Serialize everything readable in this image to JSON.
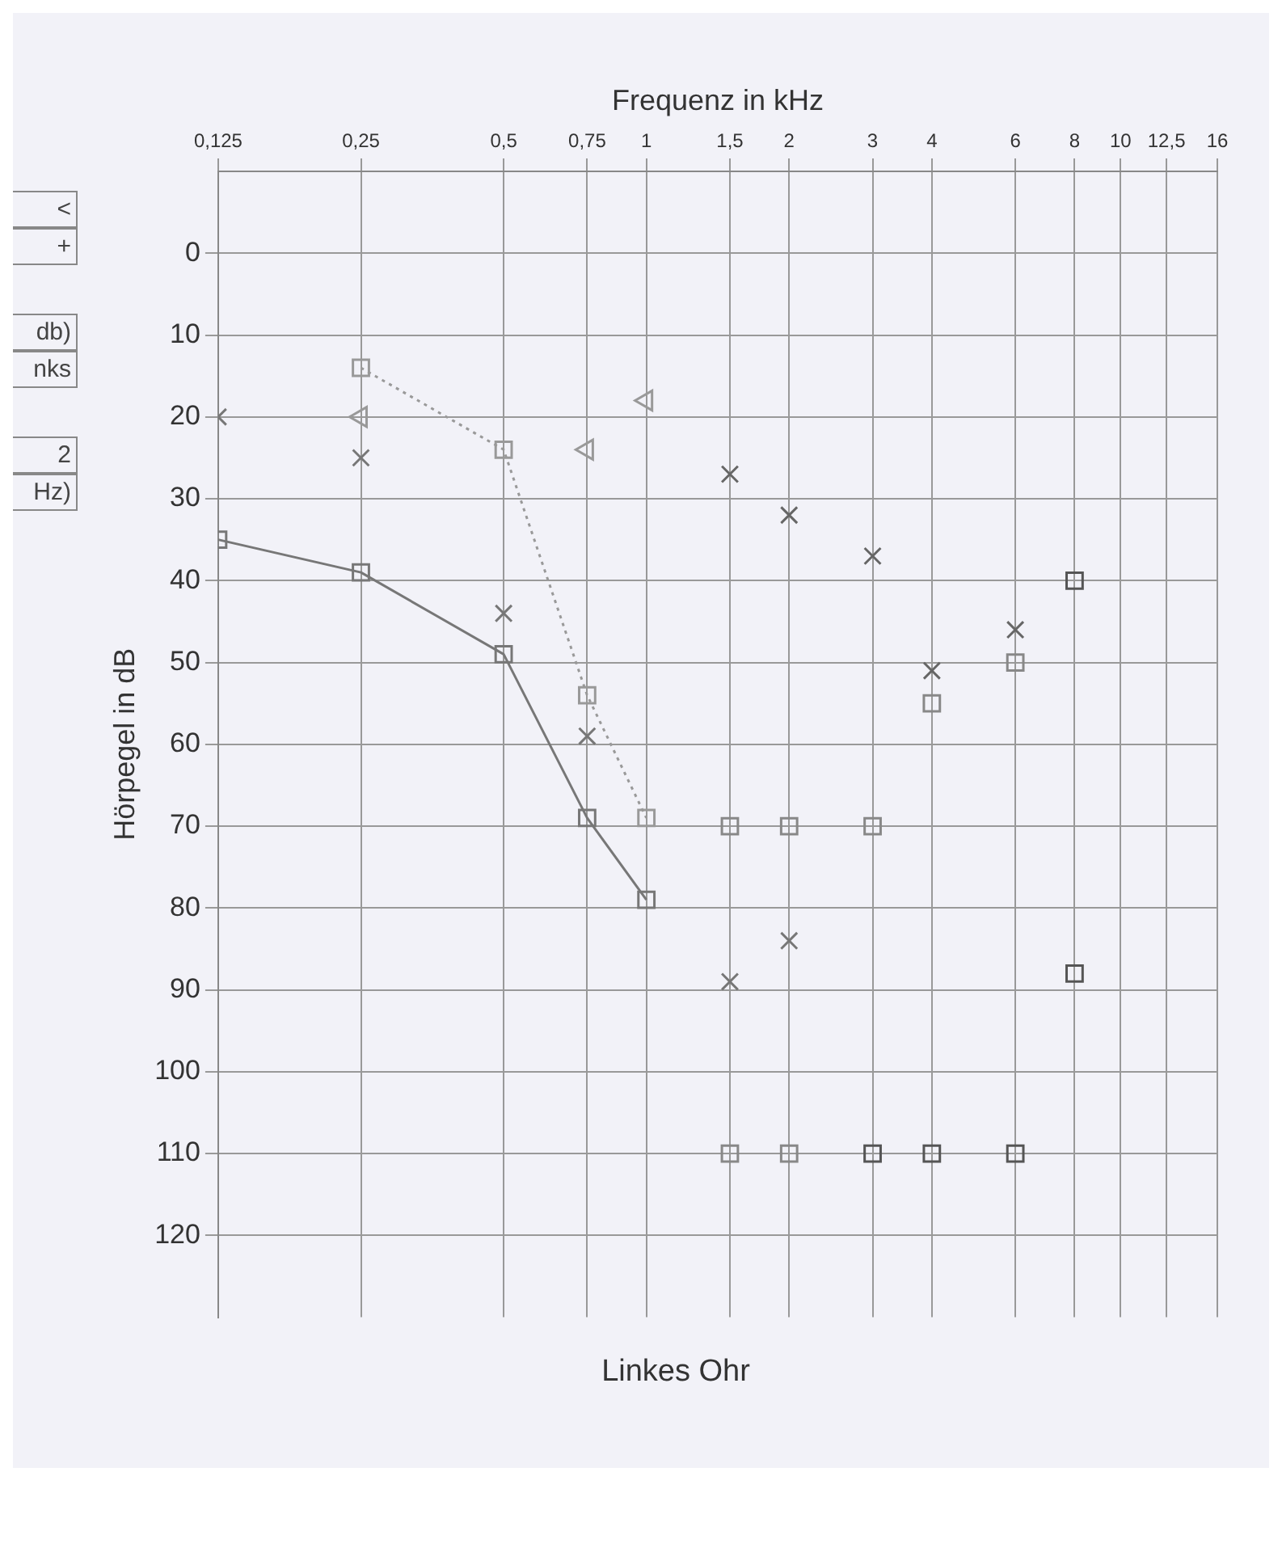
{
  "chart_data": {
    "type": "scatter",
    "xlabel": "Frequenz in kHz",
    "ylabel": "Hörpegel in dB",
    "annotations": [
      "Linkes Ohr",
      "<",
      "+",
      "db)",
      "nks",
      "2",
      "Hz)"
    ],
    "log": "x",
    "grid": true,
    "xlim": [
      0.125,
      16
    ],
    "ylim": [
      130,
      -10
    ],
    "xticks": [
      {
        "value": 0.125,
        "label": "0,125"
      },
      {
        "value": 0.25,
        "label": "0,25"
      },
      {
        "value": 0.5,
        "label": "0,5"
      },
      {
        "value": 0.75,
        "label": "0,75"
      },
      1,
      {
        "value": 1.5,
        "label": "1,5"
      },
      2,
      3,
      4,
      6,
      8,
      10,
      {
        "value": 12.5,
        "label": "12,5"
      },
      16
    ],
    "yticks": [
      0,
      10,
      20,
      30,
      40,
      50,
      60,
      70,
      80,
      90,
      100,
      110,
      120
    ],
    "series": [
      {
        "type": "line",
        "color": "#777777",
        "marker": "square",
        "line_style": "solid",
        "x": [
          0.125,
          0.25,
          0.5,
          0.75,
          1
        ],
        "values": [
          35,
          39,
          49,
          69,
          79
        ]
      },
      {
        "type": "line",
        "color": "#999999",
        "marker": "square",
        "line_style": "dotted",
        "x": [
          0.25,
          0.5,
          0.75,
          1
        ],
        "values": [
          14,
          24,
          54,
          69
        ]
      },
      {
        "color": "#777777",
        "marker": "cross",
        "x": [
          0.125,
          0.25,
          0.5,
          0.75,
          1.5,
          2
        ],
        "values": [
          20,
          25,
          44,
          59,
          89,
          84
        ]
      },
      {
        "color": "#999999",
        "marker": "triangle",
        "x": [
          0.25,
          0.75,
          1
        ],
        "values": [
          20,
          24,
          18
        ]
      },
      {
        "color": "#666666",
        "marker": "cross",
        "x": [
          1.5,
          2,
          3,
          4,
          6
        ],
        "values": [
          27,
          32,
          37,
          51,
          46
        ]
      },
      {
        "color": "#888888",
        "marker": "square",
        "x": [
          1.5,
          2,
          3,
          4,
          6
        ],
        "values": [
          70,
          70,
          70,
          55,
          50
        ]
      },
      {
        "color": "#555555",
        "marker": "square",
        "x": [
          3,
          4,
          6,
          8,
          8
        ],
        "values": [
          110,
          110,
          110,
          40,
          88
        ]
      },
      {
        "color": "#888888",
        "marker": "square",
        "x": [
          1.5,
          2
        ],
        "values": [
          110,
          110
        ]
      }
    ]
  }
}
